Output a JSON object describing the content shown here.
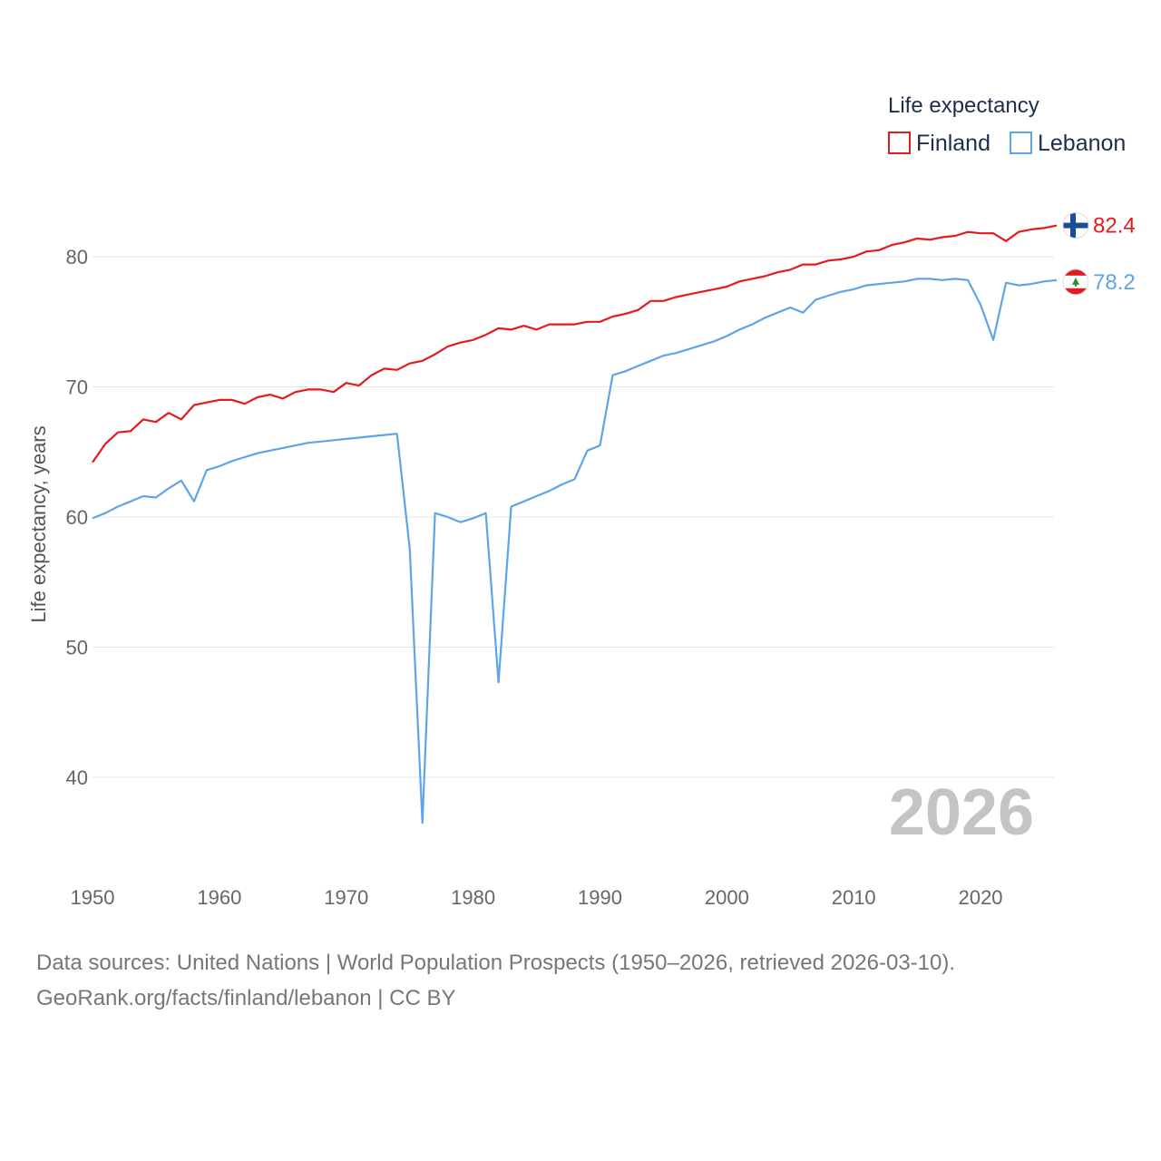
{
  "chart_data": {
    "type": "line",
    "title": "",
    "legend_title": "Life expectancy",
    "ylabel": "Life expectancy, years",
    "xlabel": "",
    "ylim": [
      33,
      88
    ],
    "xlim": [
      1950,
      2026
    ],
    "yticks": [
      40,
      50,
      60,
      70,
      80
    ],
    "xticks": [
      1950,
      1960,
      1970,
      1980,
      1990,
      2000,
      2010,
      2020
    ],
    "current_year": "2026",
    "legend_position": "top-right",
    "x": [
      1950,
      1951,
      1952,
      1953,
      1954,
      1955,
      1956,
      1957,
      1958,
      1959,
      1960,
      1961,
      1962,
      1963,
      1964,
      1965,
      1966,
      1967,
      1968,
      1969,
      1970,
      1971,
      1972,
      1973,
      1974,
      1975,
      1976,
      1977,
      1978,
      1979,
      1980,
      1981,
      1982,
      1983,
      1984,
      1985,
      1986,
      1987,
      1988,
      1989,
      1990,
      1991,
      1992,
      1993,
      1994,
      1995,
      1996,
      1997,
      1998,
      1999,
      2000,
      2001,
      2002,
      2003,
      2004,
      2005,
      2006,
      2007,
      2008,
      2009,
      2010,
      2011,
      2012,
      2013,
      2014,
      2015,
      2016,
      2017,
      2018,
      2019,
      2020,
      2021,
      2022,
      2023,
      2024,
      2025,
      2026
    ],
    "series": [
      {
        "name": "Finland",
        "color": "#e41a1c",
        "end_label": "82.4",
        "values": [
          64.2,
          65.6,
          66.5,
          66.6,
          67.5,
          67.3,
          68.0,
          67.5,
          68.6,
          68.8,
          69.0,
          69.0,
          68.7,
          69.2,
          69.4,
          69.1,
          69.6,
          69.8,
          69.8,
          69.6,
          70.3,
          70.1,
          70.9,
          71.4,
          71.3,
          71.8,
          72.0,
          72.5,
          73.1,
          73.4,
          73.6,
          74.0,
          74.5,
          74.4,
          74.7,
          74.4,
          74.8,
          74.8,
          74.8,
          75.0,
          75.0,
          75.4,
          75.6,
          75.9,
          76.6,
          76.6,
          76.9,
          77.1,
          77.3,
          77.5,
          77.7,
          78.1,
          78.3,
          78.5,
          78.8,
          79.0,
          79.4,
          79.4,
          79.7,
          79.8,
          80.0,
          80.4,
          80.5,
          80.9,
          81.1,
          81.4,
          81.3,
          81.5,
          81.6,
          81.9,
          81.8,
          81.8,
          81.2,
          81.9,
          82.1,
          82.2,
          82.4
        ]
      },
      {
        "name": "Lebanon",
        "color": "#5da5e8",
        "end_label": "78.2",
        "values": [
          59.9,
          60.3,
          60.8,
          61.2,
          61.6,
          61.5,
          62.2,
          62.8,
          61.2,
          63.6,
          63.9,
          64.3,
          64.6,
          64.9,
          65.1,
          65.3,
          65.5,
          65.7,
          65.8,
          65.9,
          66.0,
          66.1,
          66.2,
          66.3,
          66.4,
          57.6,
          36.5,
          60.3,
          60.0,
          59.6,
          59.9,
          60.3,
          47.3,
          60.8,
          61.2,
          61.6,
          62.0,
          62.5,
          62.9,
          65.1,
          65.5,
          70.9,
          71.2,
          71.6,
          72.0,
          72.4,
          72.6,
          72.9,
          73.2,
          73.5,
          73.9,
          74.4,
          74.8,
          75.3,
          75.7,
          76.1,
          75.7,
          76.7,
          77.0,
          77.3,
          77.5,
          77.8,
          77.9,
          78.0,
          78.1,
          78.3,
          78.3,
          78.2,
          78.3,
          78.2,
          76.3,
          73.6,
          78.0,
          77.8,
          77.9,
          78.1,
          78.2
        ]
      }
    ]
  },
  "footer": {
    "line1": "Data sources: United Nations | World Population Prospects (1950–2026, retrieved 2026-03-10).",
    "line2": "GeoRank.org/facts/finland/lebanon | CC BY"
  }
}
